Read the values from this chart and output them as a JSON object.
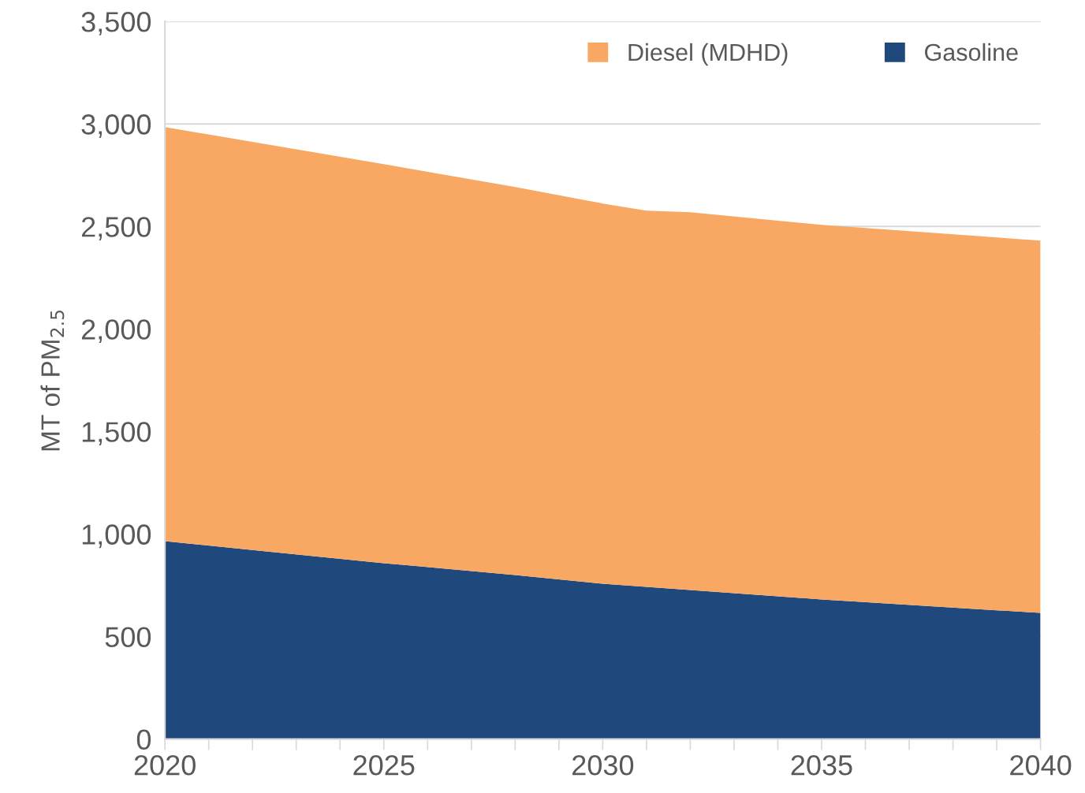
{
  "chart_data": {
    "type": "area",
    "stacked": true,
    "ylabel": "MT of PM$_{2.5}$",
    "x": [
      2020,
      2022,
      2025,
      2028,
      2030,
      2031,
      2032,
      2035,
      2040
    ],
    "series": [
      {
        "name": "Gasoline",
        "color": "#1f497d",
        "values": [
          965,
          922,
          858,
          800,
          758,
          742,
          727,
          681,
          615
        ]
      },
      {
        "name": "Diesel (MDHD)",
        "color": "#f8a862",
        "values": [
          2020,
          1990,
          1946,
          1892,
          1854,
          1835,
          1842,
          1827,
          1816
        ]
      }
    ],
    "xlim": [
      2020,
      2040
    ],
    "xticks": [
      2020,
      {
        "value": 2021,
        "label": null
      },
      {
        "value": 2022,
        "label": null
      },
      {
        "value": 2023,
        "label": null
      },
      {
        "value": 2024,
        "label": null
      },
      2025,
      {
        "value": 2026,
        "label": null
      },
      {
        "value": 2027,
        "label": null
      },
      {
        "value": 2028,
        "label": null
      },
      {
        "value": 2029,
        "label": null
      },
      2030,
      {
        "value": 2031,
        "label": null
      },
      {
        "value": 2032,
        "label": null
      },
      {
        "value": 2033,
        "label": null
      },
      {
        "value": 2034,
        "label": null
      },
      2035,
      {
        "value": 2036,
        "label": null
      },
      {
        "value": 2037,
        "label": null
      },
      {
        "value": 2038,
        "label": null
      },
      {
        "value": 2039,
        "label": null
      },
      2040
    ],
    "ylim": [
      0,
      3500
    ],
    "yticks": [
      {
        "value": 0,
        "label": "0"
      },
      {
        "value": 500,
        "label": "500"
      },
      {
        "value": 1000,
        "label": "1,000"
      },
      {
        "value": 1500,
        "label": "1,500"
      },
      {
        "value": 2000,
        "label": "2,000"
      },
      {
        "value": 2500,
        "label": "2,500"
      },
      {
        "value": 3000,
        "label": "3,000"
      },
      {
        "value": 3500,
        "label": "3,500"
      }
    ],
    "grid": "y",
    "legend": "top right"
  }
}
